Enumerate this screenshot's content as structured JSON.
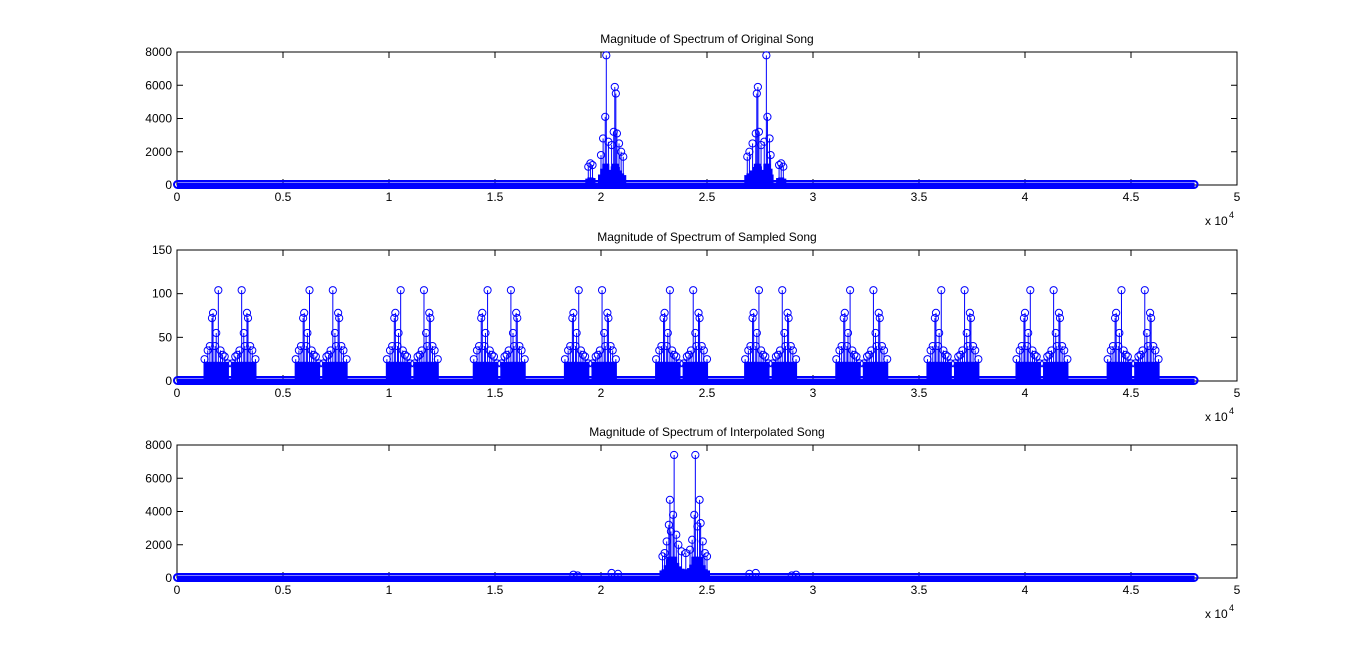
{
  "chart_data": [
    {
      "type": "stem",
      "title": "Magnitude of Spectrum of Original Song",
      "xlim": [
        0,
        50000
      ],
      "ylim": [
        0,
        8000
      ],
      "xtick_labels": [
        "0",
        "0.5",
        "1",
        "1.5",
        "2",
        "2.5",
        "3",
        "3.5",
        "4",
        "4.5",
        "5"
      ],
      "ytick_labels": [
        "0",
        "2000",
        "4000",
        "6000",
        "8000"
      ],
      "x_exponent_label": "x 10",
      "x_exponent_power": "4",
      "x_data_max": 48000,
      "color": "#0000ff",
      "series": [
        {
          "points": [
            [
              19400,
              1100
            ],
            [
              19500,
              1300
            ],
            [
              19600,
              1200
            ],
            [
              20000,
              1800
            ],
            [
              20100,
              2800
            ],
            [
              20200,
              4100
            ],
            [
              20250,
              7800
            ],
            [
              20350,
              2600
            ],
            [
              20500,
              2400
            ],
            [
              20600,
              3200
            ],
            [
              20650,
              5900
            ],
            [
              20700,
              5500
            ],
            [
              20750,
              3100
            ],
            [
              20850,
              2500
            ],
            [
              20950,
              2000
            ],
            [
              21050,
              1700
            ],
            [
              26900,
              1700
            ],
            [
              27000,
              2000
            ],
            [
              27150,
              2500
            ],
            [
              27300,
              3100
            ],
            [
              27350,
              5500
            ],
            [
              27400,
              5900
            ],
            [
              27450,
              3200
            ],
            [
              27550,
              2400
            ],
            [
              27700,
              2600
            ],
            [
              27800,
              7800
            ],
            [
              27850,
              4100
            ],
            [
              27950,
              2800
            ],
            [
              28000,
              1800
            ],
            [
              28400,
              1200
            ],
            [
              28500,
              1300
            ],
            [
              28600,
              1100
            ]
          ]
        }
      ]
    },
    {
      "type": "stem",
      "title": "Magnitude of Spectrum of Sampled Song",
      "xlim": [
        0,
        50000
      ],
      "ylim": [
        0,
        150
      ],
      "xtick_labels": [
        "0",
        "0.5",
        "1",
        "1.5",
        "2",
        "2.5",
        "3",
        "3.5",
        "4",
        "4.5",
        "5"
      ],
      "ytick_labels": [
        "0",
        "50",
        "100",
        "150"
      ],
      "x_exponent_label": "x 10",
      "x_exponent_power": "4",
      "x_data_max": 48000,
      "color": "#0000ff",
      "series": [
        {
          "cluster_centers": [
            2500,
            6800,
            11100,
            15200,
            19500,
            23800,
            28000,
            32300,
            36600,
            40800,
            45100
          ],
          "cluster_profile": [
            [
              -1200,
              25
            ],
            [
              -1050,
              35
            ],
            [
              -950,
              40
            ],
            [
              -850,
              72
            ],
            [
              -800,
              78
            ],
            [
              -700,
              40
            ],
            [
              -650,
              55
            ],
            [
              -550,
              104
            ],
            [
              -450,
              35
            ],
            [
              -350,
              30
            ],
            [
              -250,
              28
            ],
            [
              -100,
              20
            ],
            [
              100,
              20
            ],
            [
              250,
              28
            ],
            [
              350,
              30
            ],
            [
              450,
              35
            ],
            [
              550,
              104
            ],
            [
              650,
              55
            ],
            [
              700,
              40
            ],
            [
              800,
              78
            ],
            [
              850,
              72
            ],
            [
              950,
              40
            ],
            [
              1050,
              35
            ],
            [
              1200,
              25
            ]
          ]
        }
      ]
    },
    {
      "type": "stem",
      "title": "Magnitude of Spectrum of Interpolated Song",
      "xlim": [
        0,
        50000
      ],
      "ylim": [
        0,
        8000
      ],
      "xtick_labels": [
        "0",
        "0.5",
        "1",
        "1.5",
        "2",
        "2.5",
        "3",
        "3.5",
        "4",
        "4.5",
        "5"
      ],
      "ytick_labels": [
        "0",
        "2000",
        "4000",
        "6000",
        "8000"
      ],
      "x_exponent_label": "x 10",
      "x_exponent_power": "4",
      "x_data_max": 48000,
      "color": "#0000ff",
      "series": [
        {
          "points": [
            [
              18700,
              200
            ],
            [
              18900,
              150
            ],
            [
              20500,
              300
            ],
            [
              20800,
              250
            ],
            [
              22900,
              1300
            ],
            [
              23000,
              1500
            ],
            [
              23100,
              2200
            ],
            [
              23200,
              3200
            ],
            [
              23250,
              4700
            ],
            [
              23300,
              2800
            ],
            [
              23400,
              3800
            ],
            [
              23450,
              7400
            ],
            [
              23550,
              2600
            ],
            [
              23650,
              2000
            ],
            [
              23800,
              1600
            ],
            [
              24000,
              1500
            ],
            [
              24200,
              1700
            ],
            [
              24300,
              2300
            ],
            [
              24400,
              3800
            ],
            [
              24450,
              7400
            ],
            [
              24550,
              3100
            ],
            [
              24650,
              4700
            ],
            [
              24700,
              3300
            ],
            [
              24800,
              2200
            ],
            [
              24900,
              1500
            ],
            [
              25000,
              1300
            ],
            [
              27000,
              250
            ],
            [
              27300,
              300
            ],
            [
              29000,
              150
            ],
            [
              29200,
              200
            ]
          ]
        }
      ]
    }
  ]
}
